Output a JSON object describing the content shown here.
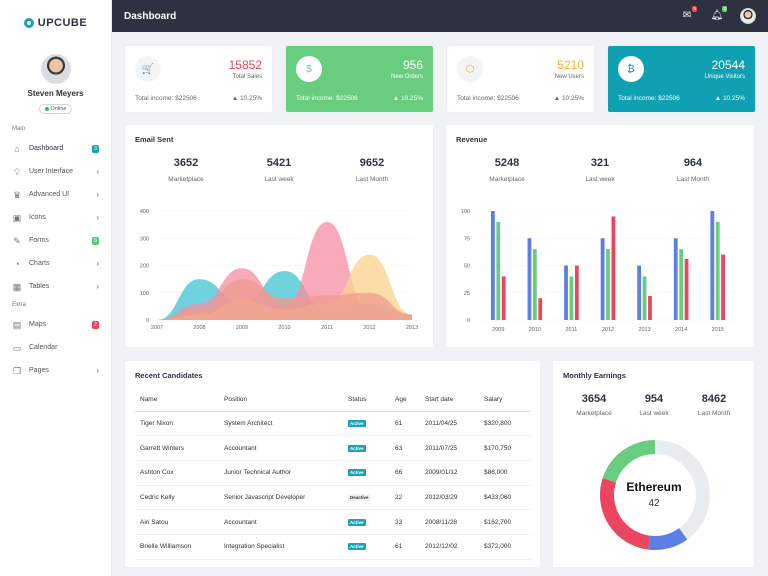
{
  "brand": {
    "name": "UPCUBE"
  },
  "profile": {
    "name": "Steven Meyers",
    "status": "Online"
  },
  "sidebar": {
    "sections": [
      "Main",
      "Extra"
    ],
    "main": [
      {
        "label": "Dashboard",
        "icon": "home-icon",
        "badge": "3",
        "badge_color": "#1aa3b7"
      },
      {
        "label": "User Interface",
        "icon": "bulb-icon",
        "chevron": true
      },
      {
        "label": "Advanced UI",
        "icon": "crown-icon",
        "chevron": true
      },
      {
        "label": "Icons",
        "icon": "box-icon",
        "chevron": true
      },
      {
        "label": "Forms",
        "icon": "edit-icon",
        "badge": "8",
        "badge_color": "#4cd080"
      },
      {
        "label": "Charts",
        "icon": "pie-icon",
        "chevron": true
      },
      {
        "label": "Tables",
        "icon": "table-icon",
        "chevron": true
      }
    ],
    "extra": [
      {
        "label": "Maps",
        "icon": "map-icon",
        "badge": "2",
        "badge_color": "#e8445b"
      },
      {
        "label": "Calendar",
        "icon": "calendar-icon"
      },
      {
        "label": "Pages",
        "icon": "pages-icon",
        "chevron": true
      }
    ]
  },
  "topbar": {
    "title": "Dashboard",
    "mail_badge": "5",
    "bell_badge": "3"
  },
  "stats": [
    {
      "value": "15852",
      "label": "Total Sales",
      "footer": "Total income: $22506",
      "change": "▲ 10.25%",
      "icon": "cart-icon",
      "glyph": "🛒",
      "value_color": "#e8445b"
    },
    {
      "value": "956",
      "label": "New Orders",
      "footer": "Total income: $22506",
      "change": "▲ 10.25%",
      "icon": "dollar-icon",
      "glyph": "$",
      "bg": "#68cd7e"
    },
    {
      "value": "5210",
      "label": "New Users",
      "footer": "Total income: $22506",
      "change": "▲ 10.25%",
      "icon": "cube-icon",
      "glyph": "⬡",
      "value_color": "#f5b225"
    },
    {
      "value": "20544",
      "label": "Unique Visitors",
      "footer": "Total income: $22506",
      "change": "▲ 10.25%",
      "icon": "bitcoin-icon",
      "glyph": "₿",
      "bg": "#0fa1b2"
    }
  ],
  "email": {
    "title": "Email Sent",
    "kpis": [
      {
        "value": "3652",
        "label": "Marketplace"
      },
      {
        "value": "5421",
        "label": "Last week"
      },
      {
        "value": "9652",
        "label": "Last Month"
      }
    ]
  },
  "revenue": {
    "title": "Revenue",
    "kpis": [
      {
        "value": "5248",
        "label": "Marketplace"
      },
      {
        "value": "321",
        "label": "Last week"
      },
      {
        "value": "964",
        "label": "Last Month"
      }
    ]
  },
  "candidates": {
    "title": "Recent Candidates",
    "headers": [
      "Name",
      "Position",
      "Status",
      "Age",
      "Start date",
      "Salary"
    ],
    "rows": [
      [
        "Tiger Nixon",
        "System Architect",
        "Active",
        "61",
        "2011/04/25",
        "$320,800"
      ],
      [
        "Garrett Winters",
        "Accountant",
        "Active",
        "63",
        "2011/07/25",
        "$170,750"
      ],
      [
        "Ashton Cox",
        "Junior Technical Author",
        "Active",
        "66",
        "2009/01/12",
        "$86,000"
      ],
      [
        "Cedric Kelly",
        "Senior Javascript Developer",
        "Deactive",
        "22",
        "2012/03/29",
        "$433,060"
      ],
      [
        "Airi Satou",
        "Accountant",
        "Active",
        "33",
        "2008/11/28",
        "$162,700"
      ],
      [
        "Brielle Williamson",
        "Integration Specialist",
        "Active",
        "61",
        "2012/12/02",
        "$372,000"
      ]
    ]
  },
  "earnings": {
    "title": "Monthly Earnings",
    "kpis": [
      {
        "value": "3654",
        "label": "Marketplace"
      },
      {
        "value": "954",
        "label": "Last week"
      },
      {
        "value": "8462",
        "label": "Last Month"
      }
    ],
    "center_title": "Ethereum",
    "center_value": "42"
  },
  "chart_data": [
    {
      "type": "area",
      "x": [
        "2007",
        "2008",
        "2009",
        "2010",
        "2011",
        "2012",
        "2013"
      ],
      "ylim": [
        0,
        400
      ],
      "yticks": [
        "0",
        "100",
        "200",
        "300",
        "400"
      ],
      "series": [
        {
          "color": "#3fc3d3",
          "values": [
            0,
            150,
            60,
            180,
            40,
            60,
            20
          ]
        },
        {
          "color": "#f58ea3",
          "values": [
            0,
            60,
            190,
            50,
            360,
            40,
            20
          ]
        },
        {
          "color": "#f9d38a",
          "values": [
            0,
            20,
            70,
            40,
            60,
            240,
            20
          ]
        },
        {
          "color": "#ef9a8f",
          "values": [
            0,
            40,
            150,
            80,
            90,
            100,
            20
          ]
        }
      ]
    },
    {
      "type": "bar",
      "categories": [
        "2009",
        "2010",
        "2011",
        "2012",
        "2013",
        "2014",
        "2015"
      ],
      "ylim": [
        0,
        100
      ],
      "yticks": [
        "0",
        "25",
        "50",
        "75",
        "100"
      ],
      "series": [
        {
          "color": "#5b7fe6",
          "values": [
            100,
            75,
            50,
            75,
            50,
            75,
            100
          ]
        },
        {
          "color": "#68cd7e",
          "values": [
            90,
            65,
            40,
            65,
            40,
            65,
            90
          ]
        },
        {
          "color": "#ec4561",
          "values": [
            40,
            20,
            50,
            95,
            22,
            56,
            60
          ]
        }
      ]
    },
    {
      "type": "pie",
      "slices": [
        {
          "value": 40,
          "color": "#e9ecef"
        },
        {
          "value": 12,
          "color": "#5b7fe6"
        },
        {
          "value": 28,
          "color": "#ec4561"
        },
        {
          "value": 20,
          "color": "#68cd7e"
        }
      ]
    }
  ]
}
